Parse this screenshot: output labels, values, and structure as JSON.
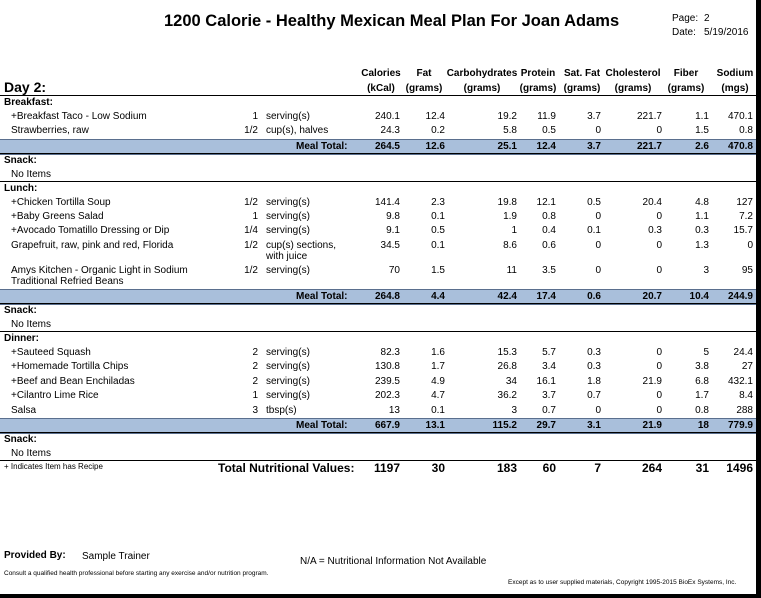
{
  "header": {
    "title": "1200 Calorie - Healthy Mexican Meal Plan For Joan Adams",
    "page_label": "Page:",
    "page_value": "2",
    "date_label": "Date:",
    "date_value": "5/19/2016"
  },
  "day_label": "Day 2:",
  "columns": [
    {
      "name": "Calories",
      "unit": "(kCal)"
    },
    {
      "name": "Fat",
      "unit": "(grams)"
    },
    {
      "name": "Carbohydrates",
      "unit": "(grams)"
    },
    {
      "name": "Protein",
      "unit": "(grams)"
    },
    {
      "name": "Sat. Fat",
      "unit": "(grams)"
    },
    {
      "name": "Cholesterol",
      "unit": "(grams)"
    },
    {
      "name": "Fiber",
      "unit": "(grams)"
    },
    {
      "name": "Sodium",
      "unit": "(mgs)"
    }
  ],
  "meals": {
    "breakfast": {
      "label": "Breakfast:",
      "items": [
        {
          "name": "+Breakfast Taco - Low Sodium",
          "name2": "",
          "qty": "1",
          "unit": "serving(s)",
          "unit2": "",
          "values": [
            "240.1",
            "12.4",
            "19.2",
            "11.9",
            "3.7",
            "221.7",
            "1.1",
            "470.1"
          ]
        },
        {
          "name": "Strawberries, raw",
          "name2": "",
          "qty": "1/2",
          "unit": "cup(s), halves",
          "unit2": "",
          "values": [
            "24.3",
            "0.2",
            "5.8",
            "0.5",
            "0",
            "0",
            "1.5",
            "0.8"
          ]
        }
      ],
      "total_label": "Meal Total:",
      "totals": [
        "264.5",
        "12.6",
        "25.1",
        "12.4",
        "3.7",
        "221.7",
        "2.6",
        "470.8"
      ]
    },
    "snack1": {
      "label": "Snack:",
      "text": "No Items"
    },
    "lunch": {
      "label": "Lunch:",
      "items": [
        {
          "name": "+Chicken Tortilla Soup",
          "name2": "",
          "qty": "1/2",
          "unit": "serving(s)",
          "unit2": "",
          "values": [
            "141.4",
            "2.3",
            "19.8",
            "12.1",
            "0.5",
            "20.4",
            "4.8",
            "127"
          ]
        },
        {
          "name": "+Baby Greens Salad",
          "name2": "",
          "qty": "1",
          "unit": "serving(s)",
          "unit2": "",
          "values": [
            "9.8",
            "0.1",
            "1.9",
            "0.8",
            "0",
            "0",
            "1.1",
            "7.2"
          ]
        },
        {
          "name": "+Avocado Tomatillo Dressing or Dip",
          "name2": "",
          "qty": "1/4",
          "unit": "serving(s)",
          "unit2": "",
          "values": [
            "9.1",
            "0.5",
            "1",
            "0.4",
            "0.1",
            "0.3",
            "0.3",
            "15.7"
          ]
        },
        {
          "name": "Grapefruit, raw, pink and red, Florida",
          "name2": "",
          "qty": "1/2",
          "unit": "cup(s) sections,",
          "unit2": "with juice",
          "values": [
            "34.5",
            "0.1",
            "8.6",
            "0.6",
            "0",
            "0",
            "1.3",
            "0"
          ]
        },
        {
          "name": "Amys Kitchen - Organic Light in Sodium",
          "name2": "Traditional Refried Beans",
          "qty": "1/2",
          "unit": "serving(s)",
          "unit2": "",
          "values": [
            "70",
            "1.5",
            "11",
            "3.5",
            "0",
            "0",
            "3",
            "95"
          ]
        }
      ],
      "total_label": "Meal Total:",
      "totals": [
        "264.8",
        "4.4",
        "42.4",
        "17.4",
        "0.6",
        "20.7",
        "10.4",
        "244.9"
      ]
    },
    "snack2": {
      "label": "Snack:",
      "text": "No Items"
    },
    "dinner": {
      "label": "Dinner:",
      "items": [
        {
          "name": "+Sauteed Squash",
          "name2": "",
          "qty": "2",
          "unit": "serving(s)",
          "unit2": "",
          "values": [
            "82.3",
            "1.6",
            "15.3",
            "5.7",
            "0.3",
            "0",
            "5",
            "24.4"
          ]
        },
        {
          "name": "+Homemade Tortilla Chips",
          "name2": "",
          "qty": "2",
          "unit": "serving(s)",
          "unit2": "",
          "values": [
            "130.8",
            "1.7",
            "26.8",
            "3.4",
            "0.3",
            "0",
            "3.8",
            "27"
          ]
        },
        {
          "name": "+Beef and Bean Enchiladas",
          "name2": "",
          "qty": "2",
          "unit": "serving(s)",
          "unit2": "",
          "values": [
            "239.5",
            "4.9",
            "34",
            "16.1",
            "1.8",
            "21.9",
            "6.8",
            "432.1"
          ]
        },
        {
          "name": "+Cilantro Lime Rice",
          "name2": "",
          "qty": "1",
          "unit": "serving(s)",
          "unit2": "",
          "values": [
            "202.3",
            "4.7",
            "36.2",
            "3.7",
            "0.7",
            "0",
            "1.7",
            "8.4"
          ]
        },
        {
          "name": "Salsa",
          "name2": "",
          "qty": "3",
          "unit": "tbsp(s)",
          "unit2": "",
          "values": [
            "13",
            "0.1",
            "3",
            "0.7",
            "0",
            "0",
            "0.8",
            "288"
          ]
        }
      ],
      "total_label": "Meal Total:",
      "totals": [
        "667.9",
        "13.1",
        "115.2",
        "29.7",
        "3.1",
        "21.9",
        "18",
        "779.9"
      ]
    },
    "snack3": {
      "label": "Snack:",
      "text": "No Items"
    }
  },
  "recipe_note": "+ Indicates Item has Recipe",
  "grand_total": {
    "label": "Total Nutritional Values:",
    "values": [
      "1197",
      "30",
      "183",
      "60",
      "7",
      "264",
      "31",
      "1496"
    ]
  },
  "footer": {
    "provided_label": "Provided By:",
    "provided_value": "Sample Trainer",
    "na_note": "N/A = Nutritional Information Not Available",
    "disclaimer": "Consult a qualified health professional before starting any exercise and/or nutrition program.",
    "copyright": "Except as to user supplied materials, Copyright 1995-2015 BioEx Systems, Inc."
  }
}
